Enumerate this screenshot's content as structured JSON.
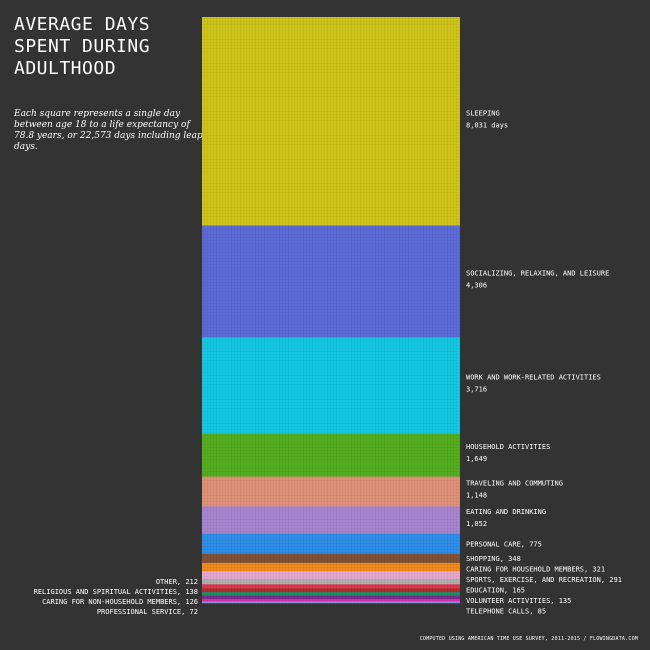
{
  "title": "AVERAGE DAYS SPENT DURING ADULTHOOD",
  "subtitle": "Each square represents a single day between age 18 to a life expectancy of 78.8 years, or 22,573 days including leap days.",
  "credit": "COMPUTED USING AMERICAN TIME USE SURVEY, 2011-2015 / FLOWINGDATA.COM",
  "chart_data": {
    "type": "bar",
    "orientation": "stacked-unit-waffle",
    "title": "AVERAGE DAYS SPENT DURING ADULTHOOD",
    "unit": "days",
    "total": 22573,
    "categories": [
      {
        "name": "SLEEPING",
        "value": 8031,
        "label": "SLEEPING",
        "value_label": "8,031 days",
        "color": "#cfc51a",
        "side": "right",
        "layout": "two-line"
      },
      {
        "name": "SOCIALIZING, RELAXING, AND LEISURE",
        "value": 4306,
        "label": "SOCIALIZING, RELAXING, AND LEISURE",
        "value_label": "4,306",
        "color": "#5d6bd8",
        "side": "right",
        "layout": "two-line"
      },
      {
        "name": "WORK AND WORK-RELATED ACTIVITIES",
        "value": 3716,
        "label": "WORK AND WORK-RELATED ACTIVITIES",
        "value_label": "3,716",
        "color": "#14c8e4",
        "side": "right",
        "layout": "two-line"
      },
      {
        "name": "HOUSEHOLD ACTIVITIES",
        "value": 1649,
        "label": "HOUSEHOLD ACTIVITIES",
        "value_label": "1,649",
        "color": "#54ad1e",
        "side": "right",
        "layout": "two-line"
      },
      {
        "name": "TRAVELING AND COMMUTING",
        "value": 1148,
        "label": "TRAVELING AND COMMUTING",
        "value_label": "1,148",
        "color": "#e0917a",
        "side": "right",
        "layout": "two-line"
      },
      {
        "name": "EATING AND DRINKING",
        "value": 1052,
        "label": "EATING AND DRINKING",
        "value_label": "1,052",
        "color": "#a785d0",
        "side": "right",
        "layout": "two-line"
      },
      {
        "name": "PERSONAL CARE",
        "value": 775,
        "label": "PERSONAL CARE, 775",
        "color": "#2e8ee8",
        "side": "right",
        "layout": "inline"
      },
      {
        "name": "SHOPPING",
        "value": 348,
        "label": "SHOPPING, 348",
        "color": "#7f5238",
        "side": "right",
        "layout": "inline"
      },
      {
        "name": "CARING FOR HOUSEHOLD MEMBERS",
        "value": 321,
        "label": "CARING FOR HOUSEHOLD MEMBERS, 321",
        "color": "#f08a1a",
        "side": "right",
        "layout": "inline"
      },
      {
        "name": "SPORTS, EXERCISE, AND RECREATION",
        "value": 291,
        "label": "SPORTS, EXERCISE, AND RECREATION, 291",
        "color": "#e8a7cf",
        "side": "right",
        "layout": "inline"
      },
      {
        "name": "OTHER",
        "value": 212,
        "label": "OTHER, 212",
        "color": "#b0b0b0",
        "side": "left",
        "layout": "inline"
      },
      {
        "name": "EDUCATION",
        "value": 165,
        "label": "EDUCATION, 165",
        "color": "#d93a4d",
        "side": "right",
        "layout": "inline"
      },
      {
        "name": "RELIGIOUS AND SPIRITUAL ACTIVITIES",
        "value": 138,
        "label": "RELIGIOUS AND SPIRITUAL ACTIVITIES, 138",
        "color": "#b22a2a",
        "side": "left",
        "layout": "inline"
      },
      {
        "name": "VOLUNTEER ACTIVITIES",
        "value": 135,
        "label": "VOLUNTEER ACTIVITIES, 135",
        "color": "#1f8f6a",
        "side": "right",
        "layout": "inline"
      },
      {
        "name": "CARING FOR NON-HOUSEHOLD MEMBERS",
        "value": 126,
        "label": "CARING FOR NON-HOUSEHOLD MEMBERS, 126",
        "color": "#7b2c86",
        "side": "left",
        "layout": "inline"
      },
      {
        "name": "TELEPHONE CALLS",
        "value": 85,
        "label": "TELEPHONE CALLS, 85",
        "color": "#d92ab8",
        "side": "right",
        "layout": "inline"
      },
      {
        "name": "PROFESSIONAL SERVICE",
        "value": 72,
        "label": "PROFESSIONAL SERVICE, 72",
        "color": "#8a8ad0",
        "side": "left",
        "layout": "inline"
      }
    ]
  }
}
